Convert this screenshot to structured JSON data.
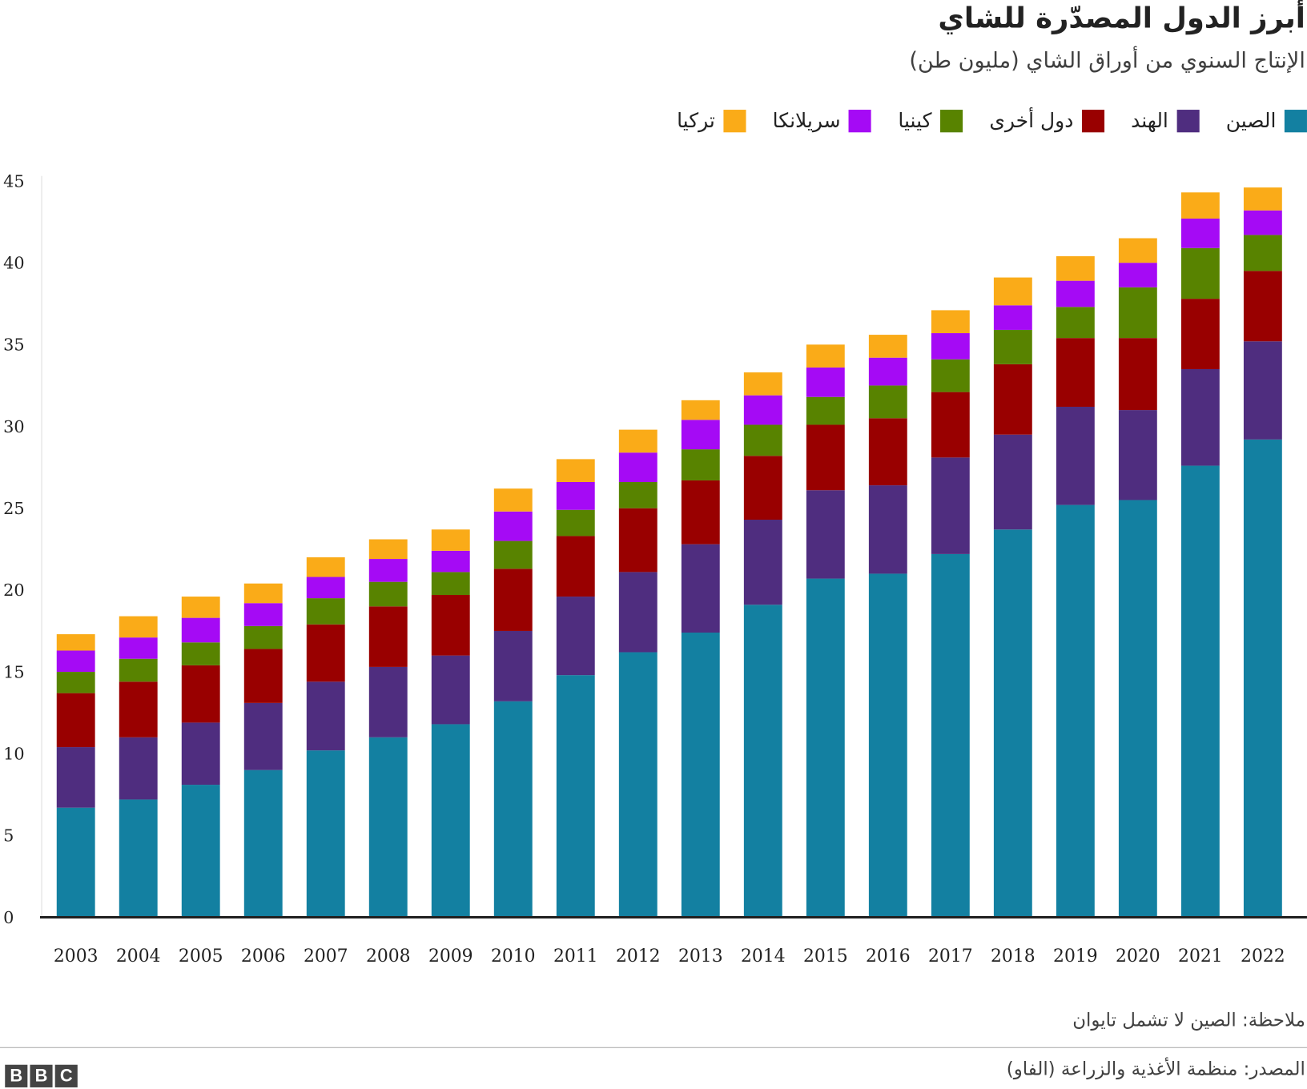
{
  "title": "أبرز الدول المصدّرة للشاي",
  "subtitle": "الإنتاج السنوي من أوراق الشاي (مليون طن)",
  "note": "ملاحظة: الصين لا تشمل تايوان",
  "source": "المصدر: منظمة الأغذية والزراعة (الفاو)",
  "logo": "BBC",
  "chart_data": {
    "type": "bar",
    "stacked": true,
    "categories": [
      "2003",
      "2004",
      "2005",
      "2006",
      "2007",
      "2008",
      "2009",
      "2010",
      "2011",
      "2012",
      "2013",
      "2014",
      "2015",
      "2016",
      "2017",
      "2018",
      "2019",
      "2020",
      "2021",
      "2022"
    ],
    "ylim": [
      0,
      45
    ],
    "yticks": [
      0,
      5,
      10,
      15,
      20,
      25,
      30,
      35,
      40,
      45
    ],
    "grid": false,
    "legend": "top-right",
    "series": [
      {
        "name": "الصين",
        "color": "#1380A1",
        "values": [
          6.7,
          7.2,
          8.1,
          9.0,
          10.2,
          11.0,
          11.8,
          13.2,
          14.8,
          16.2,
          17.4,
          19.1,
          20.7,
          21.0,
          22.2,
          23.7,
          25.2,
          25.5,
          27.6,
          29.2
        ]
      },
      {
        "name": "الهند",
        "color": "#4F2D7F",
        "values": [
          3.7,
          3.8,
          3.8,
          4.1,
          4.2,
          4.3,
          4.2,
          4.3,
          4.8,
          4.9,
          5.4,
          5.2,
          5.4,
          5.4,
          5.9,
          5.8,
          6.0,
          5.5,
          5.9,
          6.0
        ]
      },
      {
        "name": "دول أخرى",
        "color": "#990000",
        "values": [
          3.3,
          3.4,
          3.5,
          3.3,
          3.5,
          3.7,
          3.7,
          3.8,
          3.7,
          3.9,
          3.9,
          3.9,
          4.0,
          4.1,
          4.0,
          4.3,
          4.2,
          4.4,
          4.3,
          4.3
        ]
      },
      {
        "name": "كينيا",
        "color": "#588300",
        "values": [
          1.3,
          1.4,
          1.4,
          1.4,
          1.6,
          1.5,
          1.4,
          1.7,
          1.6,
          1.6,
          1.9,
          1.9,
          1.7,
          2.0,
          2.0,
          2.1,
          1.9,
          3.1,
          3.1,
          2.2
        ]
      },
      {
        "name": "سريلانكا",
        "color": "#A50AF5",
        "values": [
          1.3,
          1.3,
          1.5,
          1.4,
          1.3,
          1.4,
          1.3,
          1.8,
          1.7,
          1.8,
          1.8,
          1.8,
          1.8,
          1.7,
          1.6,
          1.5,
          1.6,
          1.5,
          1.8,
          1.5
        ]
      },
      {
        "name": "تركيا",
        "color": "#FAAB18",
        "values": [
          1.0,
          1.3,
          1.3,
          1.2,
          1.2,
          1.2,
          1.3,
          1.4,
          1.4,
          1.4,
          1.2,
          1.4,
          1.4,
          1.4,
          1.4,
          1.7,
          1.5,
          1.5,
          1.6,
          1.4
        ]
      }
    ]
  }
}
